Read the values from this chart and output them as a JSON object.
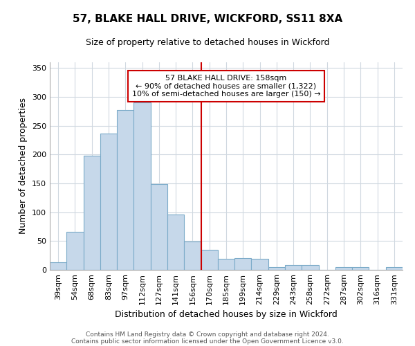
{
  "title": "57, BLAKE HALL DRIVE, WICKFORD, SS11 8XA",
  "subtitle": "Size of property relative to detached houses in Wickford",
  "xlabel": "Distribution of detached houses by size in Wickford",
  "ylabel": "Number of detached properties",
  "bar_color": "#c6d8ea",
  "bar_edge_color": "#7aaac8",
  "categories": [
    "39sqm",
    "54sqm",
    "68sqm",
    "83sqm",
    "97sqm",
    "112sqm",
    "127sqm",
    "141sqm",
    "156sqm",
    "170sqm",
    "185sqm",
    "199sqm",
    "214sqm",
    "229sqm",
    "243sqm",
    "258sqm",
    "272sqm",
    "287sqm",
    "302sqm",
    "316sqm",
    "331sqm"
  ],
  "values": [
    13,
    66,
    198,
    237,
    277,
    290,
    149,
    96,
    49,
    35,
    19,
    20,
    19,
    5,
    8,
    8,
    0,
    5,
    5,
    0,
    5
  ],
  "vline_x": 8.5,
  "vline_color": "#cc0000",
  "annotation_text": "57 BLAKE HALL DRIVE: 158sqm\n← 90% of detached houses are smaller (1,322)\n10% of semi-detached houses are larger (150) →",
  "annotation_box_color": "#ffffff",
  "annotation_box_edge_color": "#cc0000",
  "ylim": [
    0,
    360
  ],
  "yticks": [
    0,
    50,
    100,
    150,
    200,
    250,
    300,
    350
  ],
  "footer_line1": "Contains HM Land Registry data © Crown copyright and database right 2024.",
  "footer_line2": "Contains public sector information licensed under the Open Government Licence v3.0.",
  "background_color": "#ffffff",
  "grid_color": "#d0d8e0",
  "title_fontsize": 11,
  "subtitle_fontsize": 9,
  "ylabel_fontsize": 9,
  "xlabel_fontsize": 9,
  "tick_fontsize": 8,
  "annotation_fontsize": 8,
  "footer_fontsize": 6.5
}
